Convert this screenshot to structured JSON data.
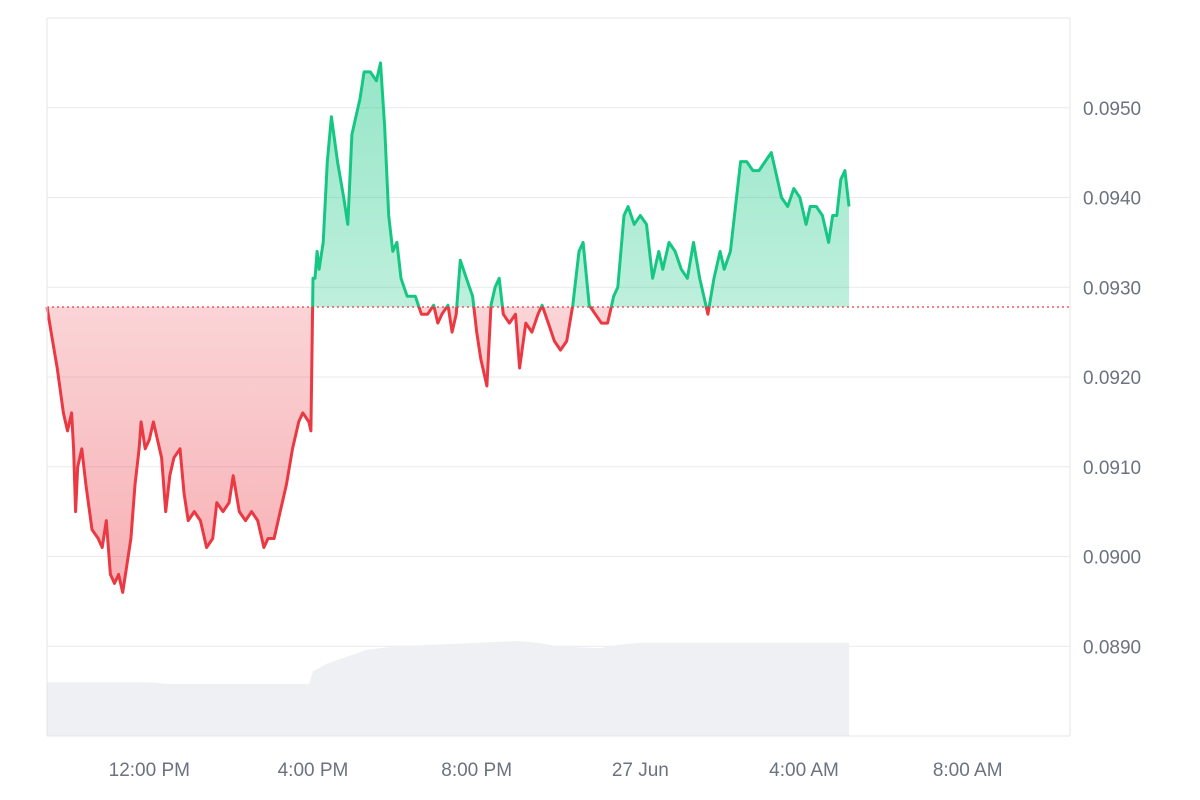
{
  "chart_data": {
    "type": "area",
    "title": "",
    "xlabel": "",
    "ylabel": "",
    "baseline": 0.09278,
    "ylim": [
      0.088,
      0.096
    ],
    "y_ticks": [
      "0.0890",
      "0.0900",
      "0.0910",
      "0.0920",
      "0.0930",
      "0.0940",
      "0.0950"
    ],
    "y_tick_values": [
      0.089,
      0.09,
      0.091,
      0.092,
      0.093,
      0.094,
      0.095
    ],
    "x_ticks": [
      "12:00 PM",
      "4:00 PM",
      "8:00 PM",
      "27 Jun",
      "4:00 AM",
      "8:00 AM"
    ],
    "x_tick_hours": [
      12,
      16,
      20,
      24,
      28,
      32
    ],
    "x_range_hours": [
      9.5,
      34.5
    ],
    "colors": {
      "up": "#16c784",
      "down": "#ea3943",
      "up_fill": "#16c784",
      "down_fill": "#ea3943",
      "volume": "#eef0f3",
      "baseline": "#ea3943"
    },
    "series": [
      {
        "values": [
          [
            9.5,
            0.09278
          ],
          [
            9.6,
            0.0925
          ],
          [
            9.75,
            0.0921
          ],
          [
            9.9,
            0.0916
          ],
          [
            10.0,
            0.0914
          ],
          [
            10.1,
            0.0916
          ],
          [
            10.15,
            0.0912
          ],
          [
            10.2,
            0.0905
          ],
          [
            10.25,
            0.091
          ],
          [
            10.35,
            0.0912
          ],
          [
            10.45,
            0.0908
          ],
          [
            10.6,
            0.0903
          ],
          [
            10.75,
            0.0902
          ],
          [
            10.85,
            0.0901
          ],
          [
            10.95,
            0.0904
          ],
          [
            11.05,
            0.0898
          ],
          [
            11.15,
            0.0897
          ],
          [
            11.25,
            0.0898
          ],
          [
            11.35,
            0.0896
          ],
          [
            11.45,
            0.0899
          ],
          [
            11.55,
            0.0902
          ],
          [
            11.65,
            0.0908
          ],
          [
            11.75,
            0.0912
          ],
          [
            11.8,
            0.0915
          ],
          [
            11.9,
            0.0912
          ],
          [
            12.0,
            0.0913
          ],
          [
            12.1,
            0.0915
          ],
          [
            12.2,
            0.0913
          ],
          [
            12.3,
            0.0911
          ],
          [
            12.4,
            0.0905
          ],
          [
            12.5,
            0.0909
          ],
          [
            12.6,
            0.0911
          ],
          [
            12.75,
            0.0912
          ],
          [
            12.85,
            0.0907
          ],
          [
            12.95,
            0.0904
          ],
          [
            13.1,
            0.0905
          ],
          [
            13.25,
            0.0904
          ],
          [
            13.4,
            0.0901
          ],
          [
            13.55,
            0.0902
          ],
          [
            13.65,
            0.0906
          ],
          [
            13.8,
            0.0905
          ],
          [
            13.95,
            0.0906
          ],
          [
            14.05,
            0.0909
          ],
          [
            14.2,
            0.0905
          ],
          [
            14.35,
            0.0904
          ],
          [
            14.5,
            0.0905
          ],
          [
            14.65,
            0.0904
          ],
          [
            14.8,
            0.0901
          ],
          [
            14.9,
            0.0902
          ],
          [
            15.05,
            0.0902
          ],
          [
            15.2,
            0.0905
          ],
          [
            15.35,
            0.0908
          ],
          [
            15.5,
            0.0912
          ],
          [
            15.65,
            0.0915
          ],
          [
            15.75,
            0.0916
          ],
          [
            15.9,
            0.0915
          ],
          [
            15.95,
            0.0914
          ],
          [
            16.0,
            0.0931
          ],
          [
            16.05,
            0.0931
          ],
          [
            16.1,
            0.0934
          ],
          [
            16.15,
            0.0932
          ],
          [
            16.25,
            0.0935
          ],
          [
            16.35,
            0.0944
          ],
          [
            16.45,
            0.0949
          ],
          [
            16.6,
            0.0944
          ],
          [
            16.75,
            0.094
          ],
          [
            16.85,
            0.0937
          ],
          [
            16.95,
            0.0947
          ],
          [
            17.05,
            0.0949
          ],
          [
            17.15,
            0.0951
          ],
          [
            17.25,
            0.0954
          ],
          [
            17.4,
            0.0954
          ],
          [
            17.55,
            0.0953
          ],
          [
            17.65,
            0.0955
          ],
          [
            17.75,
            0.0948
          ],
          [
            17.85,
            0.0938
          ],
          [
            17.95,
            0.0934
          ],
          [
            18.05,
            0.0935
          ],
          [
            18.15,
            0.0931
          ],
          [
            18.3,
            0.0929
          ],
          [
            18.5,
            0.0929
          ],
          [
            18.65,
            0.0927
          ],
          [
            18.8,
            0.0927
          ],
          [
            18.95,
            0.0928
          ],
          [
            19.05,
            0.0926
          ],
          [
            19.15,
            0.0927
          ],
          [
            19.3,
            0.0928
          ],
          [
            19.4,
            0.0925
          ],
          [
            19.5,
            0.0927
          ],
          [
            19.6,
            0.0933
          ],
          [
            19.75,
            0.0931
          ],
          [
            19.9,
            0.0929
          ],
          [
            20.0,
            0.0925
          ],
          [
            20.1,
            0.0922
          ],
          [
            20.25,
            0.0919
          ],
          [
            20.35,
            0.0928
          ],
          [
            20.45,
            0.093
          ],
          [
            20.55,
            0.0931
          ],
          [
            20.65,
            0.0927
          ],
          [
            20.8,
            0.0926
          ],
          [
            20.95,
            0.0927
          ],
          [
            21.05,
            0.0921
          ],
          [
            21.2,
            0.0926
          ],
          [
            21.35,
            0.0925
          ],
          [
            21.5,
            0.0927
          ],
          [
            21.6,
            0.0928
          ],
          [
            21.75,
            0.0926
          ],
          [
            21.9,
            0.0924
          ],
          [
            22.05,
            0.0923
          ],
          [
            22.2,
            0.0924
          ],
          [
            22.35,
            0.0928
          ],
          [
            22.5,
            0.0934
          ],
          [
            22.6,
            0.0935
          ],
          [
            22.75,
            0.0928
          ],
          [
            22.9,
            0.0927
          ],
          [
            23.05,
            0.0926
          ],
          [
            23.2,
            0.0926
          ],
          [
            23.35,
            0.0929
          ],
          [
            23.45,
            0.093
          ],
          [
            23.6,
            0.0938
          ],
          [
            23.7,
            0.0939
          ],
          [
            23.85,
            0.0937
          ],
          [
            24.0,
            0.0938
          ],
          [
            24.15,
            0.0937
          ],
          [
            24.3,
            0.0931
          ],
          [
            24.45,
            0.0934
          ],
          [
            24.55,
            0.0932
          ],
          [
            24.7,
            0.0935
          ],
          [
            24.85,
            0.0934
          ],
          [
            25.0,
            0.0932
          ],
          [
            25.15,
            0.0931
          ],
          [
            25.3,
            0.0935
          ],
          [
            25.45,
            0.0931
          ],
          [
            25.55,
            0.0929
          ],
          [
            25.65,
            0.0927
          ],
          [
            25.8,
            0.0931
          ],
          [
            25.95,
            0.0934
          ],
          [
            26.05,
            0.0932
          ],
          [
            26.2,
            0.0934
          ],
          [
            26.35,
            0.094
          ],
          [
            26.45,
            0.0944
          ],
          [
            26.6,
            0.0944
          ],
          [
            26.75,
            0.0943
          ],
          [
            26.9,
            0.0943
          ],
          [
            27.05,
            0.0944
          ],
          [
            27.2,
            0.0945
          ],
          [
            27.3,
            0.0943
          ],
          [
            27.45,
            0.094
          ],
          [
            27.6,
            0.0939
          ],
          [
            27.75,
            0.0941
          ],
          [
            27.9,
            0.094
          ],
          [
            28.05,
            0.0937
          ],
          [
            28.15,
            0.0939
          ],
          [
            28.3,
            0.0939
          ],
          [
            28.45,
            0.0938
          ],
          [
            28.6,
            0.0935
          ],
          [
            28.7,
            0.0938
          ],
          [
            28.8,
            0.0938
          ],
          [
            28.9,
            0.0942
          ],
          [
            29.0,
            0.0943
          ],
          [
            29.1,
            0.0939
          ]
        ]
      }
    ],
    "volume": [
      [
        9.5,
        0.3
      ],
      [
        10.0,
        0.3
      ],
      [
        11.0,
        0.3
      ],
      [
        12.0,
        0.3
      ],
      [
        12.5,
        0.29
      ],
      [
        13.0,
        0.29
      ],
      [
        14.0,
        0.29
      ],
      [
        15.0,
        0.29
      ],
      [
        15.9,
        0.29
      ],
      [
        16.0,
        0.36
      ],
      [
        16.3,
        0.4
      ],
      [
        16.8,
        0.44
      ],
      [
        17.3,
        0.48
      ],
      [
        18.0,
        0.5
      ],
      [
        19.0,
        0.51
      ],
      [
        20.0,
        0.52
      ],
      [
        21.0,
        0.53
      ],
      [
        21.5,
        0.52
      ],
      [
        22.0,
        0.5
      ],
      [
        23.0,
        0.49
      ],
      [
        23.5,
        0.51
      ],
      [
        24.0,
        0.52
      ],
      [
        25.0,
        0.52
      ],
      [
        26.0,
        0.52
      ],
      [
        27.0,
        0.52
      ],
      [
        28.0,
        0.52
      ],
      [
        29.0,
        0.52
      ],
      [
        29.1,
        0.52
      ]
    ]
  }
}
